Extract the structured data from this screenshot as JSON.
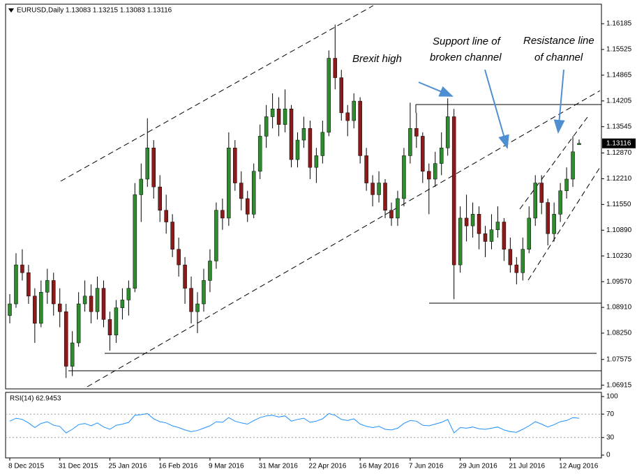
{
  "chart_data": [
    {
      "type": "candlestick",
      "title": "EURUSD,Daily  1.13083 1.13215 1.13083 1.13116",
      "up_color": "#2e8b2e",
      "down_color": "#8b1a1a",
      "ylim": [
        1.0682,
        1.1665
      ],
      "yticks": [
        1.16185,
        1.15525,
        1.14865,
        1.14205,
        1.13545,
        {
          "value": 1.1287,
          "label": "1.12870"
        },
        {
          "value": 1.1221,
          "label": "1.12210"
        },
        {
          "value": 1.1155,
          "label": "1.11550"
        },
        {
          "value": 1.1089,
          "label": "1.10890"
        },
        {
          "value": 1.1023,
          "label": "1.10230"
        },
        {
          "value": 1.0957,
          "label": "1.09570"
        },
        {
          "value": 1.0891,
          "label": "1.08910"
        },
        {
          "value": 1.0825,
          "label": "1.08250"
        },
        1.07575,
        1.06915
      ],
      "annotations": [
        "Brexit high",
        "Support line of",
        "broken channel",
        "Resistance line",
        "of channel"
      ],
      "categories": [
        "8 Dec 2015",
        null,
        null,
        null,
        null,
        null,
        null,
        null,
        "31 Dec 2015",
        null,
        null,
        null,
        null,
        null,
        null,
        null,
        "25 Jan 2016",
        null,
        null,
        null,
        null,
        null,
        null,
        null,
        "16 Feb 2016",
        null,
        null,
        null,
        null,
        null,
        null,
        null,
        "9 Mar 2016",
        null,
        null,
        null,
        null,
        null,
        null,
        null,
        "31 Mar 2016",
        null,
        null,
        null,
        null,
        null,
        null,
        null,
        "22 Apr 2016",
        null,
        null,
        null,
        null,
        null,
        null,
        null,
        "16 May 2016",
        null,
        null,
        null,
        null,
        null,
        null,
        null,
        "7 Jun 2016",
        null,
        null,
        null,
        null,
        null,
        null,
        null,
        "29 Jun 2016",
        null,
        null,
        null,
        null,
        null,
        null,
        null,
        "21 Jul 2016",
        null,
        null,
        null,
        null,
        null,
        null,
        null,
        "12 Aug 2016",
        null,
        null,
        null
      ],
      "candles": [
        [
          1.087,
          1.0925,
          1.085,
          1.09
        ],
        [
          1.09,
          1.103,
          1.089,
          1.1
        ],
        [
          1.1,
          1.104,
          1.096,
          1.098
        ],
        [
          1.098,
          1.1,
          1.09,
          1.092
        ],
        [
          1.092,
          1.094,
          1.08,
          1.085
        ],
        [
          1.085,
          1.096,
          1.084,
          1.093
        ],
        [
          1.093,
          1.099,
          1.09,
          1.096
        ],
        [
          1.096,
          1.098,
          1.087,
          1.09
        ],
        [
          1.09,
          1.094,
          1.084,
          1.088
        ],
        [
          1.088,
          1.09,
          1.071,
          1.074
        ],
        [
          1.074,
          1.083,
          1.0715,
          1.08
        ],
        [
          1.08,
          1.093,
          1.079,
          1.09
        ],
        [
          1.09,
          1.096,
          1.088,
          1.092
        ],
        [
          1.092,
          1.095,
          1.085,
          1.088
        ],
        [
          1.088,
          1.097,
          1.086,
          1.094
        ],
        [
          1.094,
          1.096,
          1.084,
          1.086
        ],
        [
          1.086,
          1.088,
          1.078,
          1.082
        ],
        [
          1.082,
          1.091,
          1.08,
          1.089
        ],
        [
          1.089,
          1.094,
          1.086,
          1.091
        ],
        [
          1.091,
          1.096,
          1.087,
          1.094
        ],
        [
          1.094,
          1.121,
          1.093,
          1.118
        ],
        [
          1.118,
          1.126,
          1.111,
          1.122
        ],
        [
          1.122,
          1.1376,
          1.12,
          1.13
        ],
        [
          1.13,
          1.132,
          1.117,
          1.12
        ],
        [
          1.12,
          1.123,
          1.111,
          1.114
        ],
        [
          1.114,
          1.118,
          1.108,
          1.111
        ],
        [
          1.111,
          1.113,
          1.102,
          1.104
        ],
        [
          1.104,
          1.107,
          1.097,
          1.1
        ],
        [
          1.1,
          1.102,
          1.09,
          1.094
        ],
        [
          1.094,
          1.097,
          1.085,
          1.088
        ],
        [
          1.088,
          1.093,
          1.0825,
          1.09
        ],
        [
          1.09,
          1.099,
          1.088,
          1.096
        ],
        [
          1.096,
          1.104,
          1.093,
          1.101
        ],
        [
          1.101,
          1.116,
          1.099,
          1.114
        ],
        [
          1.114,
          1.117,
          1.109,
          1.112
        ],
        [
          1.112,
          1.134,
          1.11,
          1.13
        ],
        [
          1.13,
          1.132,
          1.119,
          1.121
        ],
        [
          1.121,
          1.124,
          1.114,
          1.117
        ],
        [
          1.117,
          1.119,
          1.111,
          1.113
        ],
        [
          1.113,
          1.126,
          1.112,
          1.124
        ],
        [
          1.124,
          1.136,
          1.122,
          1.133
        ],
        [
          1.133,
          1.141,
          1.13,
          1.138
        ],
        [
          1.138,
          1.144,
          1.135,
          1.14
        ],
        [
          1.14,
          1.143,
          1.133,
          1.136
        ],
        [
          1.136,
          1.145,
          1.134,
          1.14
        ],
        [
          1.14,
          1.141,
          1.125,
          1.127
        ],
        [
          1.127,
          1.134,
          1.125,
          1.132
        ],
        [
          1.132,
          1.138,
          1.13,
          1.135
        ],
        [
          1.135,
          1.137,
          1.122,
          1.125
        ],
        [
          1.125,
          1.13,
          1.121,
          1.128
        ],
        [
          1.128,
          1.137,
          1.126,
          1.134
        ],
        [
          1.134,
          1.155,
          1.133,
          1.153
        ],
        [
          1.153,
          1.1616,
          1.145,
          1.148
        ],
        [
          1.148,
          1.15,
          1.137,
          1.139
        ],
        [
          1.139,
          1.141,
          1.133,
          1.137
        ],
        [
          1.137,
          1.144,
          1.135,
          1.142
        ],
        [
          1.142,
          1.143,
          1.126,
          1.128
        ],
        [
          1.128,
          1.13,
          1.119,
          1.121
        ],
        [
          1.121,
          1.123,
          1.115,
          1.118
        ],
        [
          1.118,
          1.124,
          1.116,
          1.121
        ],
        [
          1.121,
          1.122,
          1.112,
          1.114
        ],
        [
          1.114,
          1.116,
          1.11,
          1.112
        ],
        [
          1.112,
          1.119,
          1.11,
          1.117
        ],
        [
          1.117,
          1.13,
          1.115,
          1.128
        ],
        [
          1.128,
          1.1416,
          1.126,
          1.135
        ],
        [
          1.135,
          1.139,
          1.13,
          1.133
        ],
        [
          1.133,
          1.134,
          1.121,
          1.124
        ],
        [
          1.124,
          1.126,
          1.113,
          1.122
        ],
        [
          1.122,
          1.129,
          1.12,
          1.126
        ],
        [
          1.126,
          1.134,
          1.123,
          1.13
        ],
        [
          1.13,
          1.1427,
          1.128,
          1.138
        ],
        [
          1.138,
          1.14,
          1.0912,
          1.1
        ],
        [
          1.1,
          1.115,
          1.098,
          1.112
        ],
        [
          1.112,
          1.118,
          1.106,
          1.11
        ],
        [
          1.11,
          1.116,
          1.107,
          1.113
        ],
        [
          1.113,
          1.115,
          1.104,
          1.108
        ],
        [
          1.108,
          1.11,
          1.102,
          1.106
        ],
        [
          1.106,
          1.113,
          1.104,
          1.109
        ],
        [
          1.109,
          1.115,
          1.107,
          1.111
        ],
        [
          1.111,
          1.112,
          1.101,
          1.104
        ],
        [
          1.104,
          1.107,
          1.098,
          1.1
        ],
        [
          1.1,
          1.102,
          1.095,
          1.098
        ],
        [
          1.098,
          1.107,
          1.096,
          1.104
        ],
        [
          1.104,
          1.115,
          1.103,
          1.112
        ],
        [
          1.112,
          1.123,
          1.11,
          1.121
        ],
        [
          1.121,
          1.123,
          1.113,
          1.116
        ],
        [
          1.116,
          1.117,
          1.105,
          1.108
        ],
        [
          1.108,
          1.116,
          1.106,
          1.113
        ],
        [
          1.113,
          1.121,
          1.111,
          1.119
        ],
        [
          1.119,
          1.125,
          1.117,
          1.122
        ],
        [
          1.122,
          1.133,
          1.12,
          1.129
        ],
        [
          1.13083,
          1.13215,
          1.13083,
          1.13116
        ]
      ]
    },
    {
      "type": "line",
      "title": "RSI(14) 62.9453",
      "color": "#1e90ff",
      "ylim": [
        0,
        100
      ],
      "yticks": [
        100,
        70,
        30,
        0
      ],
      "values": [
        58,
        63,
        61,
        55,
        47,
        54,
        57,
        51,
        49,
        38,
        44,
        52,
        54,
        50,
        55,
        48,
        44,
        51,
        53,
        56,
        68,
        69,
        71,
        62,
        57,
        55,
        50,
        47,
        43,
        40,
        42,
        46,
        50,
        57,
        56,
        64,
        58,
        55,
        53,
        59,
        64,
        67,
        68,
        65,
        67,
        58,
        61,
        63,
        56,
        58,
        62,
        71,
        68,
        61,
        59,
        62,
        53,
        49,
        47,
        49,
        44,
        43,
        46,
        54,
        59,
        58,
        51,
        50,
        53,
        56,
        61,
        38,
        47,
        46,
        48,
        45,
        44,
        46,
        48,
        43,
        40,
        39,
        44,
        50,
        57,
        53,
        48,
        52,
        57,
        59,
        64,
        62.9453
      ]
    }
  ]
}
